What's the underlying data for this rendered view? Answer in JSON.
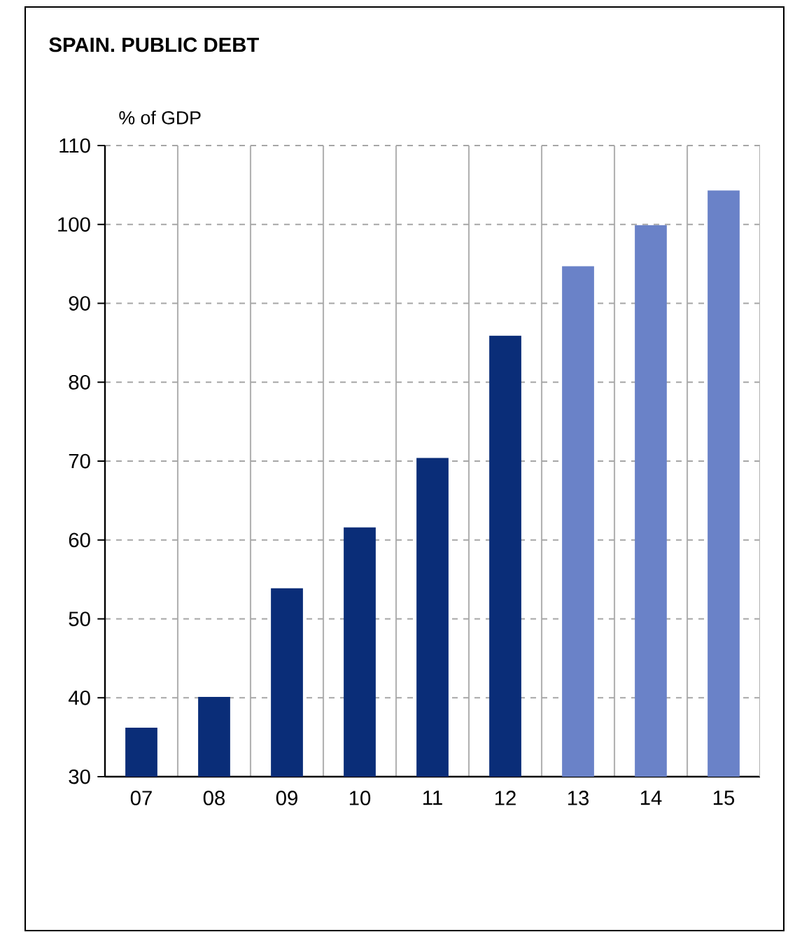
{
  "chart_data": {
    "type": "bar",
    "title": "SPAIN. PUBLIC DEBT",
    "ylabel": "% of GDP",
    "categories": [
      "07",
      "08",
      "09",
      "10",
      "11",
      "12",
      "13",
      "14",
      "15"
    ],
    "values": [
      36.2,
      40.1,
      53.9,
      61.6,
      70.4,
      85.9,
      94.7,
      99.9,
      104.3
    ],
    "colors": [
      "#0a2d78",
      "#0a2d78",
      "#0a2d78",
      "#0a2d78",
      "#0a2d78",
      "#0a2d78",
      "#6a82c8",
      "#6a82c8",
      "#6a82c8"
    ],
    "ylim": [
      30,
      110
    ],
    "yticks": [
      30,
      40,
      50,
      60,
      70,
      80,
      90,
      100,
      110
    ],
    "grid": true
  }
}
